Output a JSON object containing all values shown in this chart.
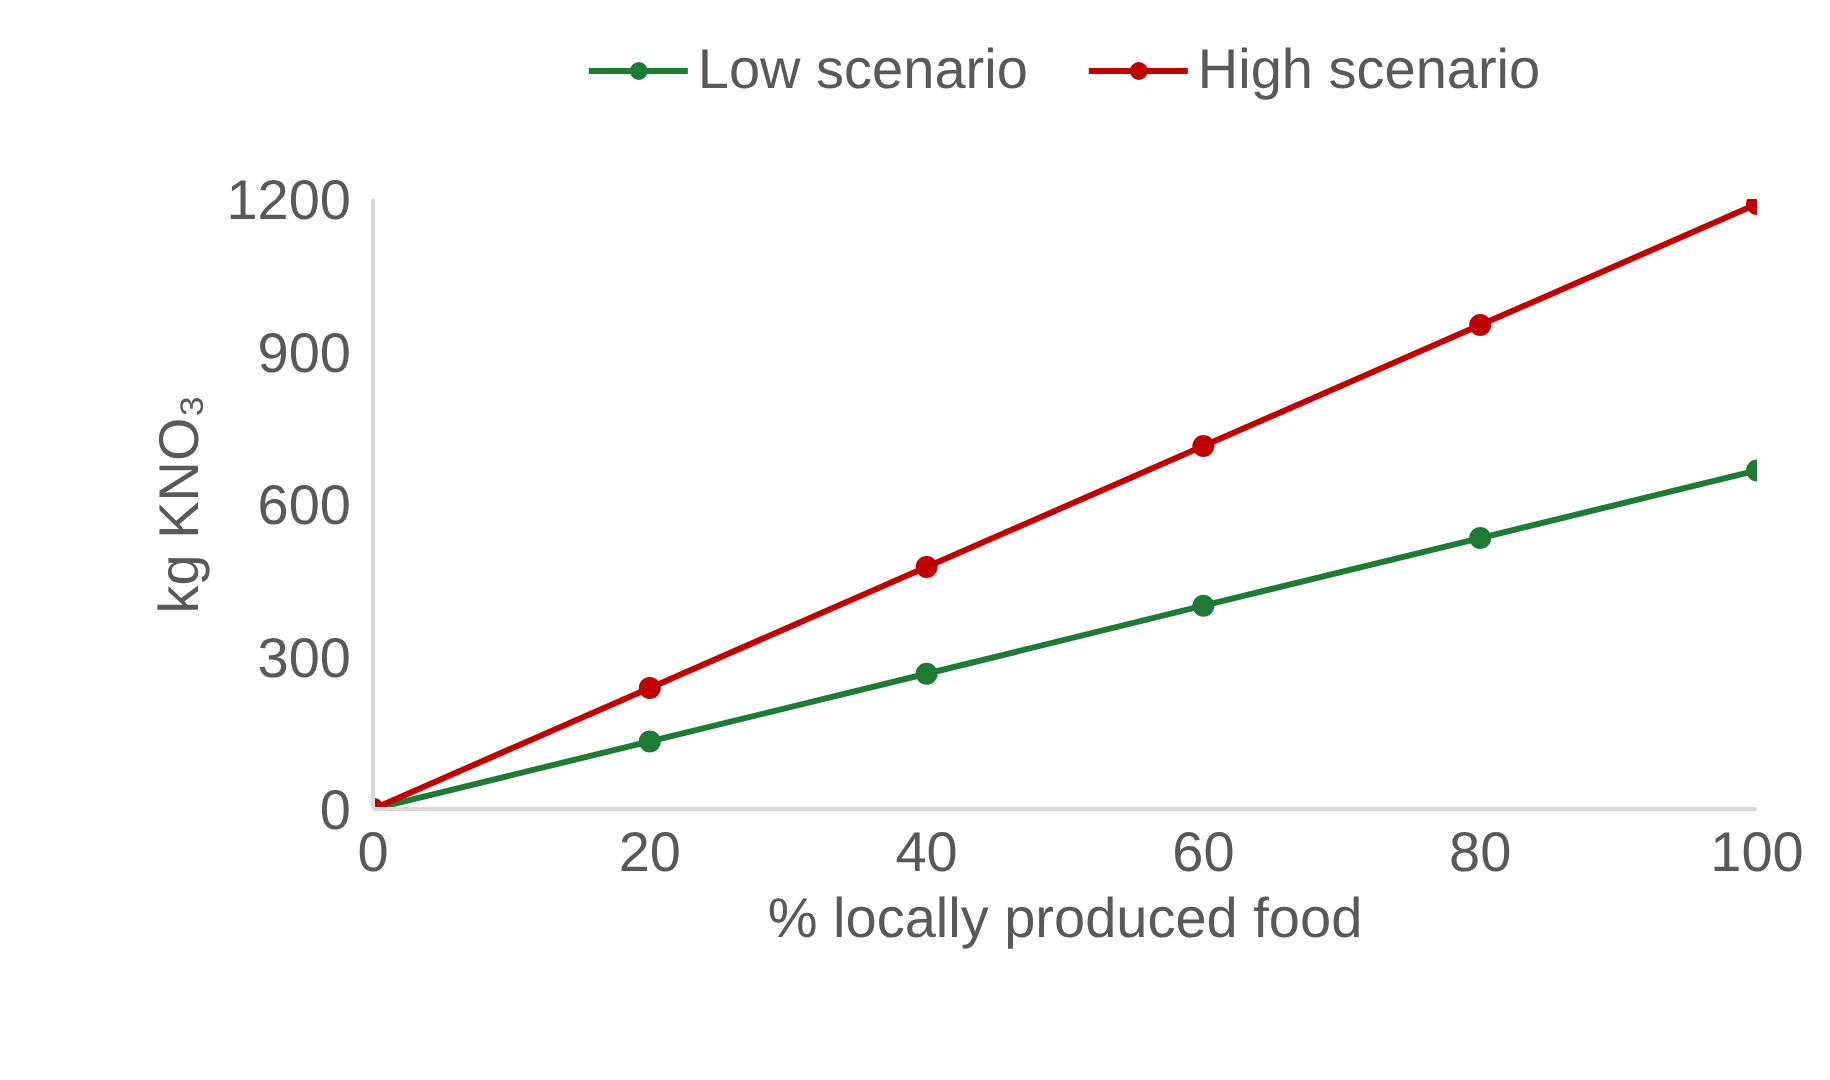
{
  "chart_data": {
    "type": "line",
    "xlabel": "% locally produced food",
    "ylabel": "kg KNO₃",
    "x": [
      0,
      20,
      40,
      60,
      80,
      100
    ],
    "series": [
      {
        "name": "Low scenario",
        "color": "#1e7a34",
        "values": [
          0,
          133,
          266,
          400,
          533,
          666
        ]
      },
      {
        "name": "High scenario",
        "color": "#c00000",
        "values": [
          0,
          238,
          476,
          714,
          952,
          1190
        ]
      }
    ],
    "xlim": [
      0,
      100
    ],
    "xticks": [
      0,
      20,
      40,
      60,
      80,
      100
    ],
    "ylim": [
      0,
      1200
    ],
    "yticks": [
      0,
      300,
      600,
      900,
      1200
    ],
    "grid": false,
    "legend": "top",
    "marker": "circle",
    "line_style": "solid"
  }
}
